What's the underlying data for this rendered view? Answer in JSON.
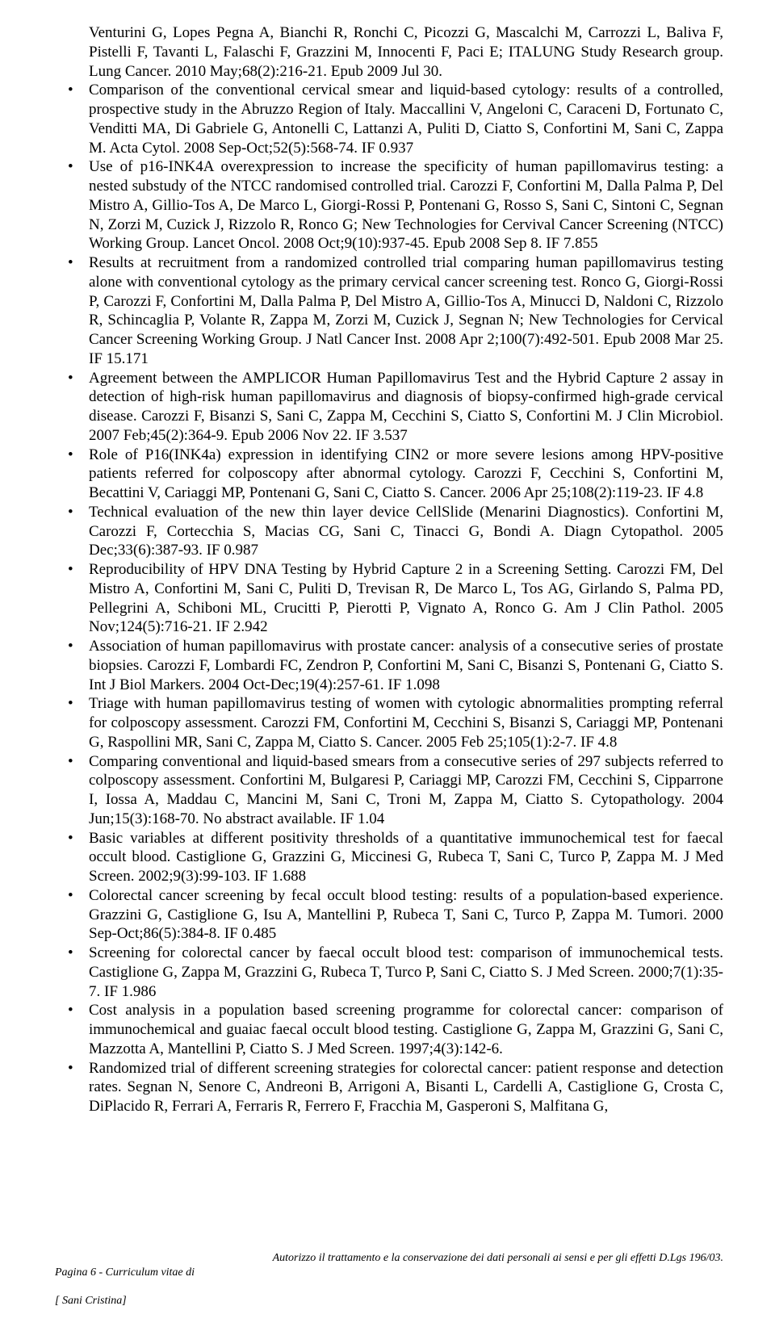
{
  "continuation": "Venturini G, Lopes Pegna A, Bianchi R, Ronchi C, Picozzi G, Mascalchi M, Carrozzi L, Baliva F, Pistelli F, Tavanti L, Falaschi F, Grazzini M, Innocenti F, Paci E; ITALUNG Study Research group. Lung Cancer. 2010 May;68(2):216-21. Epub 2009 Jul 30.",
  "items": [
    "Comparison of the conventional cervical smear and liquid-based cytology: results of a controlled, prospective study in the Abruzzo Region of Italy. Maccallini V, Angeloni C, Caraceni D, Fortunato C, Venditti MA, Di Gabriele G, Antonelli C, Lattanzi A, Puliti D, Ciatto S, Confortini M, Sani C, Zappa M. Acta Cytol. 2008 Sep-Oct;52(5):568-74. IF 0.937",
    "Use of p16-INK4A overexpression to increase the specificity of human papillomavirus testing: a nested substudy of the NTCC randomised controlled trial. Carozzi F, Confortini M, Dalla Palma P, Del Mistro A, Gillio-Tos A, De Marco L, Giorgi-Rossi P, Pontenani G, Rosso S, Sani C, Sintoni C, Segnan N, Zorzi M, Cuzick J, Rizzolo R, Ronco G; New Technologies for Cervival Cancer Screening (NTCC) Working Group. Lancet Oncol. 2008 Oct;9(10):937-45. Epub 2008 Sep 8. IF 7.855",
    "Results at recruitment from a randomized controlled trial comparing human papillomavirus testing alone with conventional cytology as the primary cervical cancer screening test. Ronco G, Giorgi-Rossi P, Carozzi F, Confortini M, Dalla Palma P, Del Mistro A, Gillio-Tos A, Minucci D, Naldoni C, Rizzolo R, Schincaglia P, Volante R, Zappa M, Zorzi M, Cuzick J, Segnan N; New Technologies for Cervical Cancer Screening Working Group. J Natl Cancer Inst. 2008 Apr 2;100(7):492-501. Epub 2008 Mar 25. IF 15.171",
    "Agreement between the AMPLICOR Human Papillomavirus Test and the Hybrid Capture 2 assay in detection of high-risk human papillomavirus and diagnosis of biopsy-confirmed high-grade cervical disease. Carozzi F, Bisanzi S, Sani C, Zappa M, Cecchini S, Ciatto S, Confortini M. J Clin Microbiol. 2007 Feb;45(2):364-9. Epub 2006 Nov 22.  IF 3.537",
    "Role of P16(INK4a) expression in identifying CIN2 or more severe lesions among HPV-positive patients referred for colposcopy after abnormal cytology. Carozzi F, Cecchini S, Confortini M, Becattini V, Cariaggi MP, Pontenani G, Sani C, Ciatto S. Cancer. 2006 Apr 25;108(2):119-23. IF 4.8",
    " Technical evaluation of the new thin layer device CellSlide (Menarini Diagnostics). Confortini M, Carozzi F, Cortecchia S, Macias CG, Sani C, Tinacci G, Bondi A. Diagn Cytopathol. 2005 Dec;33(6):387-93. IF 0.987",
    " Reproducibility of HPV DNA Testing by Hybrid Capture 2 in a Screening Setting. Carozzi FM, Del Mistro A, Confortini M, Sani C, Puliti D, Trevisan R, De Marco L, Tos AG, Girlando S, Palma PD, Pellegrini A, Schiboni ML, Crucitti P, Pierotti P, Vignato A, Ronco G. Am J Clin Pathol. 2005 Nov;124(5):716-21. IF 2.942",
    "Association of human papillomavirus with prostate cancer: analysis of a consecutive series of prostate biopsies. Carozzi F, Lombardi FC, Zendron P, Confortini M, Sani C, Bisanzi S, Pontenani G, Ciatto S. Int J Biol Markers. 2004 Oct-Dec;19(4):257-61. IF 1.098",
    "Triage with human papillomavirus testing of women with cytologic abnormalities prompting referral for colposcopy assessment. Carozzi FM, Confortini M, Cecchini S, Bisanzi S, Cariaggi MP, Pontenani G, Raspollini MR, Sani C, Zappa M, Ciatto S. Cancer. 2005 Feb 25;105(1):2-7. IF 4.8",
    "Comparing conventional and liquid-based smears from a consecutive series of 297 subjects referred to colposcopy assessment. Confortini M, Bulgaresi P, Cariaggi MP, Carozzi FM, Cecchini S, Cipparrone I, Iossa A, Maddau C, Mancini M, Sani C, Troni M, Zappa M, Ciatto S. Cytopathology. 2004 Jun;15(3):168-70. No abstract available. IF 1.04",
    "Basic variables at different positivity thresholds of a quantitative immunochemical test for faecal occult blood. Castiglione G, Grazzini G, Miccinesi G, Rubeca T, Sani C, Turco P, Zappa M. J Med Screen. 2002;9(3):99-103. IF 1.688",
    "Colorectal cancer screening by fecal occult blood testing: results of a population-based experience. Grazzini G, Castiglione G, Isu A, Mantellini P, Rubeca T, Sani C, Turco P, Zappa M. Tumori. 2000 Sep-Oct;86(5):384-8. IF 0.485",
    "Screening for colorectal cancer by faecal occult blood test: comparison of immunochemical tests. Castiglione G, Zappa M, Grazzini G, Rubeca T, Turco P, Sani C, Ciatto S. J Med Screen. 2000;7(1):35-7. IF 1.986",
    "Cost analysis in a population based screening programme for colorectal cancer: comparison of immunochemical and guaiac faecal occult blood testing. Castiglione G, Zappa M, Grazzini G, Sani C, Mazzotta A, Mantellini P, Ciatto S. J Med Screen. 1997;4(3):142-6.",
    "Randomized trial of different screening strategies for colorectal cancer: patient response and detection rates. Segnan N, Senore C, Andreoni B, Arrigoni A, Bisanti L, Cardelli A, Castiglione G, Crosta C, DiPlacido R, Ferrari A, Ferraris R, Ferrero F, Fracchia M, Gasperoni S, Malfitana G,"
  ],
  "footer": {
    "left_line1": "Pagina 6 - Curriculum vitae di",
    "left_line2": "[ Sani Cristina]",
    "right": "Autorizzo il trattamento e la conservazione dei dati personali ai sensi e per gli effetti D.Lgs 196/03."
  }
}
